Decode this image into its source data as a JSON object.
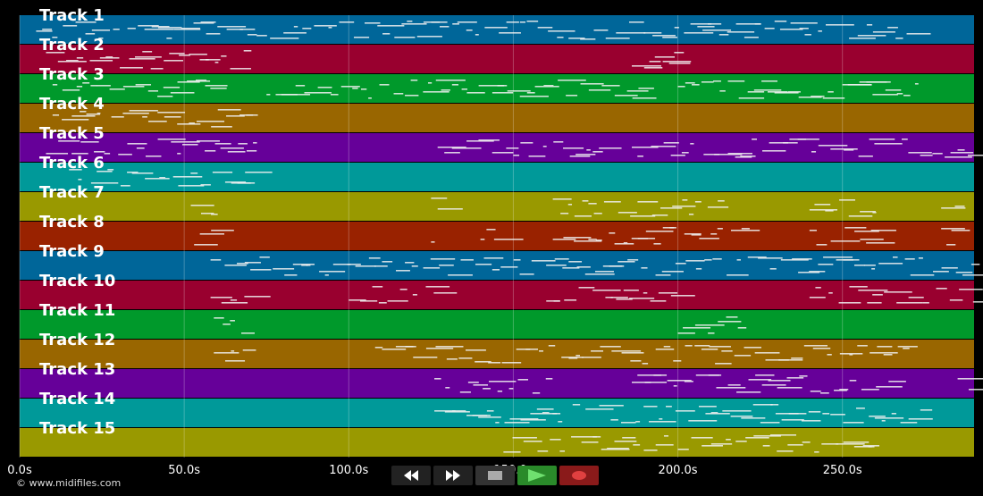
{
  "tracks": [
    {
      "label": "Track 1",
      "color": "#006699"
    },
    {
      "label": "Track 2",
      "color": "#99002f"
    },
    {
      "label": "Track 3",
      "color": "#00992b"
    },
    {
      "label": "Track 4",
      "color": "#996600"
    },
    {
      "label": "Track 5",
      "color": "#660099"
    },
    {
      "label": "Track 6",
      "color": "#009999"
    },
    {
      "label": "Track 7",
      "color": "#999900"
    },
    {
      "label": "Track 8",
      "color": "#992200"
    },
    {
      "label": "Track 9",
      "color": "#006699"
    },
    {
      "label": "Track 10",
      "color": "#99002f"
    },
    {
      "label": "Track 11",
      "color": "#00992b"
    },
    {
      "label": "Track 12",
      "color": "#996600"
    },
    {
      "label": "Track 13",
      "color": "#660099"
    },
    {
      "label": "Track 14",
      "color": "#009999"
    },
    {
      "label": "Track 15",
      "color": "#999900"
    }
  ],
  "timeline": {
    "start_s": 0,
    "end_s": 290,
    "ticks": [
      {
        "t": 0,
        "label": "0.0s"
      },
      {
        "t": 50,
        "label": "50.0s"
      },
      {
        "t": 100,
        "label": "100.0s"
      },
      {
        "t": 150,
        "label": "150.0s"
      },
      {
        "t": 200,
        "label": "200.0s"
      },
      {
        "t": 250,
        "label": "250.0s"
      }
    ]
  },
  "copyright": "© www.midifiles.com",
  "transport": {
    "rewind_icon": "rewind-icon",
    "fast_forward_icon": "fast-forward-icon",
    "stop_icon": "stop-icon",
    "play_icon": "play-icon",
    "record_icon": "record-icon",
    "play_color": "#2a8a2a",
    "record_color": "#8a1a1a"
  }
}
